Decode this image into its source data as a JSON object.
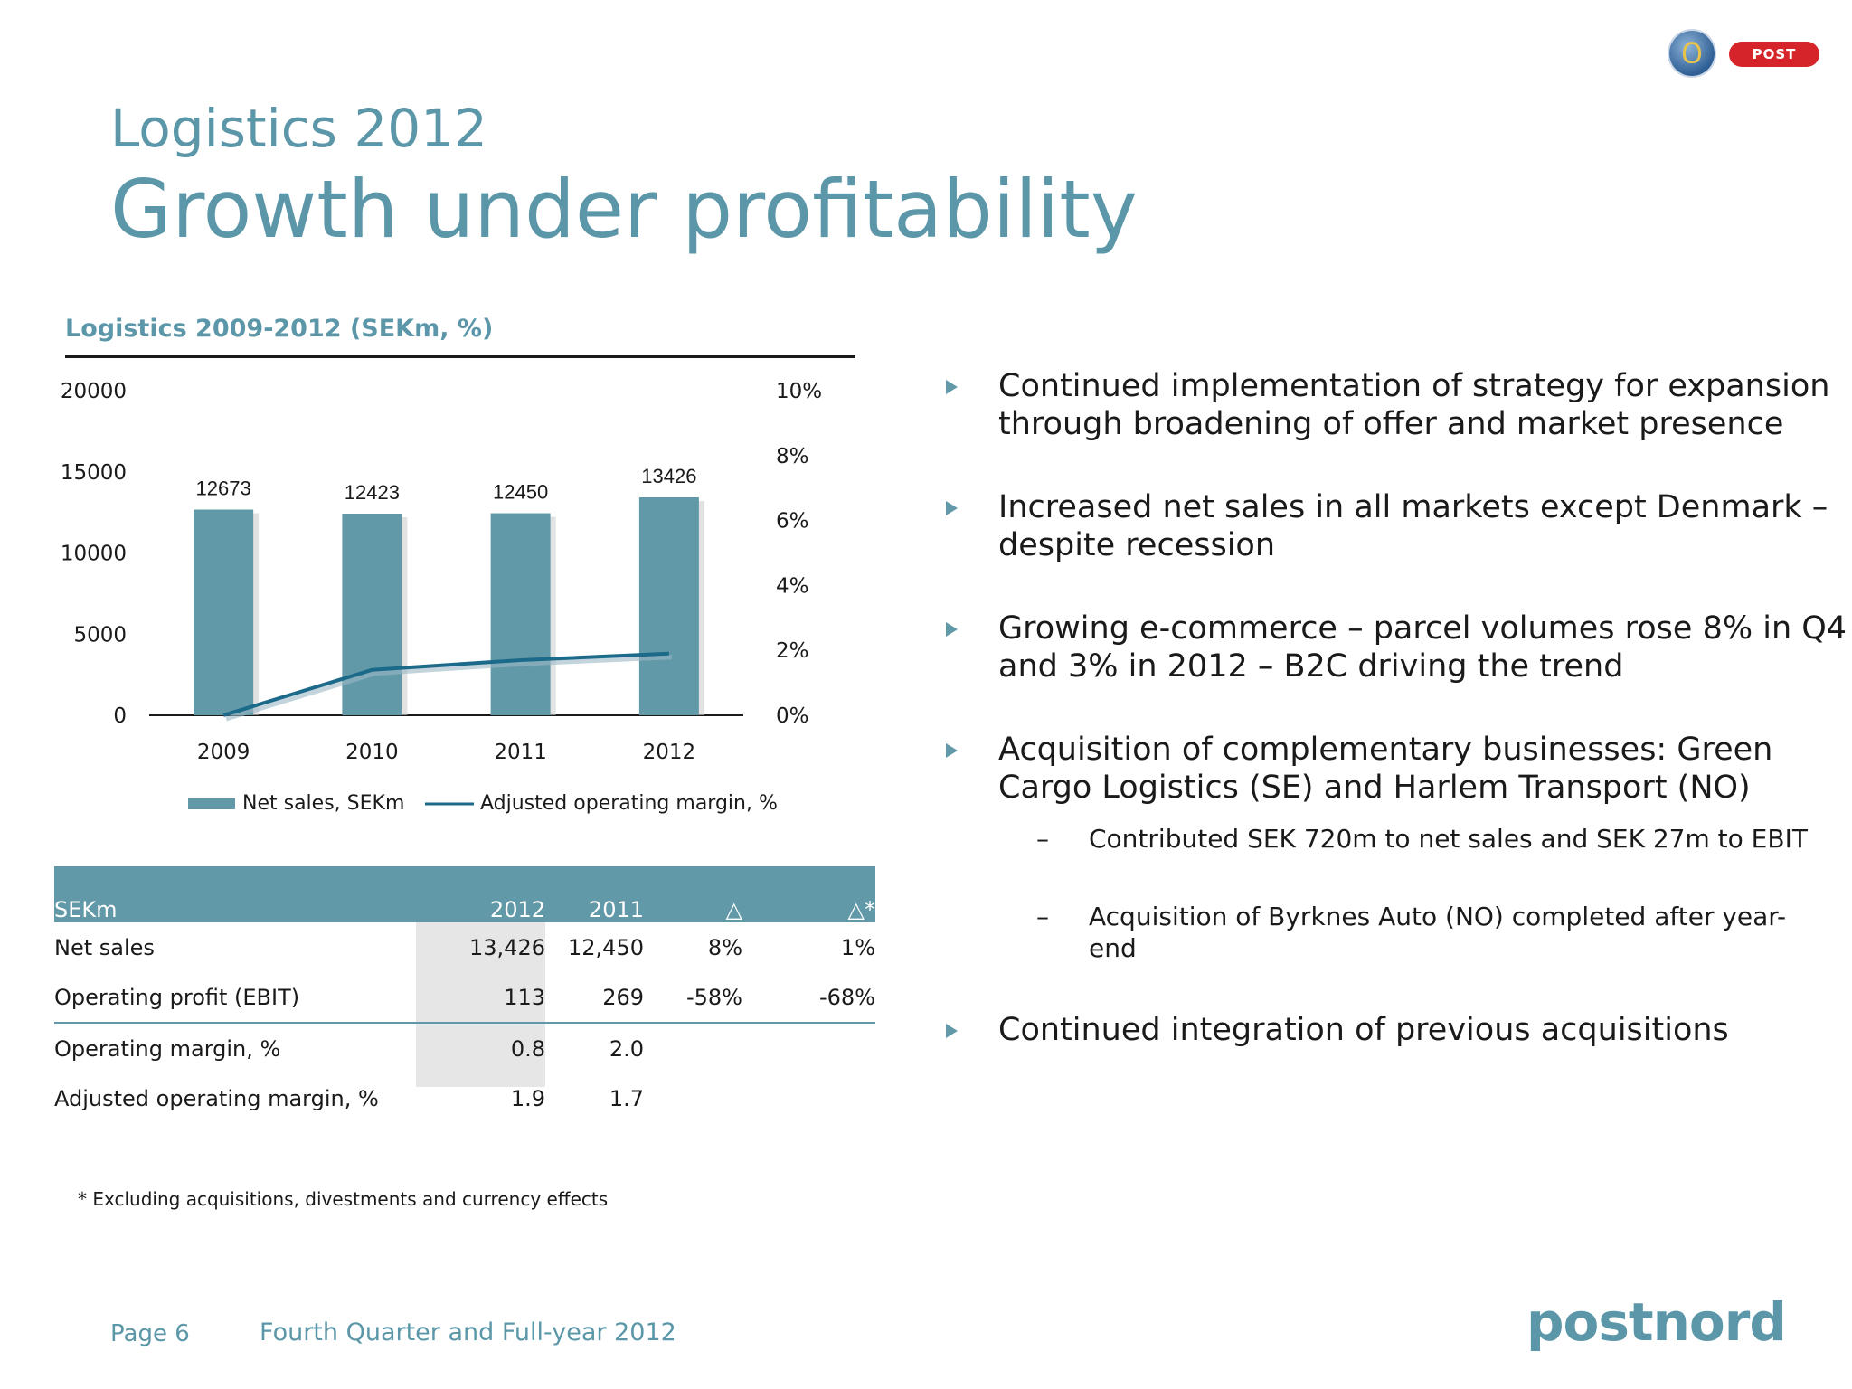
{
  "header": {
    "supertitle": "Logistics 2012",
    "title": "Growth under profitability",
    "logo_badge": "POST"
  },
  "chart_panel": {
    "title": "Logistics 2009-2012 (SEKm, %)"
  },
  "chart_data": {
    "type": "bar",
    "categories": [
      "2009",
      "2010",
      "2011",
      "2012"
    ],
    "series": [
      {
        "name": "Net sales, SEKm",
        "type": "bar",
        "axis": "left",
        "values": [
          12673,
          12423,
          12450,
          13426
        ],
        "labels": [
          "12673",
          "12423",
          "12450",
          "13426"
        ],
        "color": "#6199a8"
      },
      {
        "name": "Adjusted operating margin, %",
        "type": "line",
        "axis": "right",
        "values": [
          0,
          1.4,
          1.7,
          1.9
        ],
        "color": "#1c6a8a"
      }
    ],
    "y_left": {
      "ylim": [
        0,
        20000
      ],
      "ticks": [
        "0",
        "5000",
        "10000",
        "15000",
        "20000"
      ]
    },
    "y_right": {
      "ylim": [
        0,
        10
      ],
      "ticks": [
        "0%",
        "2%",
        "4%",
        "6%",
        "8%",
        "10%"
      ]
    },
    "legend_position": "bottom",
    "grid": false
  },
  "table": {
    "headers": [
      "SEKm",
      "2012",
      "2011",
      "△",
      "△*"
    ],
    "rows": [
      [
        "Net sales",
        "13,426",
        "12,450",
        "8%",
        "1%"
      ],
      [
        "Operating profit (EBIT)",
        "113",
        "269",
        "-58%",
        "-68%"
      ],
      [
        "Operating margin, %",
        "0.8",
        "2.0",
        "",
        ""
      ],
      [
        "Adjusted operating margin, %",
        "1.9",
        "1.7",
        "",
        ""
      ]
    ],
    "footnote": "* Excluding acquisitions, divestments and currency effects"
  },
  "bullets": [
    {
      "text": "Continued implementation of strategy for expansion through broadening of offer and market presence"
    },
    {
      "text": "Increased net sales in all markets except Denmark – despite recession"
    },
    {
      "text": "Growing e-commerce – parcel volumes rose 8% in Q4 and 3% in 2012 – B2C driving the trend"
    },
    {
      "text": "Acquisition of complementary businesses: Green Cargo Logistics (SE) and Harlem Transport (NO)"
    },
    {
      "text": "Continued integration of previous acquisitions"
    }
  ],
  "sub_bullets": [
    {
      "dash": "–",
      "text": "Contributed SEK 720m to net sales and SEK 27m to EBIT"
    },
    {
      "dash": "–",
      "text": "Acquisition of Byrknes Auto (NO) completed after year-end"
    }
  ],
  "footer": {
    "page": "Page 6",
    "report": "Fourth Quarter and Full-year 2012",
    "brand": "postnord"
  }
}
